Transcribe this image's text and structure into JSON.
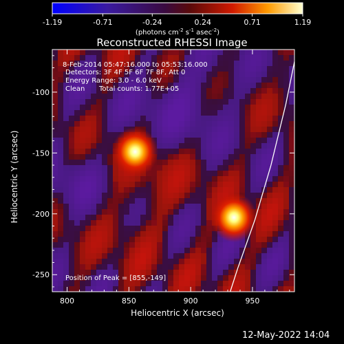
{
  "chart_data": {
    "type": "heatmap",
    "title": "Reconstructed RHESSI Image",
    "colorbar": {
      "ticks": [
        "-1.19",
        "-0.71",
        "-0.24",
        "0.24",
        "0.71",
        "1.19"
      ],
      "range": [
        -1.19,
        1.19
      ],
      "unit_label": "(photons cm",
      "unit_sup1": "-2",
      "unit_mid1": " s",
      "unit_sup2": "-1",
      "unit_mid2": " asec",
      "unit_sup3": "-2",
      "unit_end": ")"
    },
    "xlabel": "Heliocentric X (arcsec)",
    "ylabel": "Heliocentric Y (arcsec)",
    "xlim": [
      788,
      984
    ],
    "ylim": [
      -264,
      -65
    ],
    "xticks": [
      800,
      850,
      900,
      950
    ],
    "yticks": [
      -100,
      -150,
      -200,
      -250
    ],
    "annotations": {
      "time_range": "8-Feb-2014 05:47:16.000 to 05:53:16.000",
      "detectors": "Detectors: 3F 4F 5F 6F 7F 8F, Att 0",
      "energy": "Energy Range: 3.0 - 6.0 keV",
      "clean": "Clean",
      "total_counts": "Total counts: 1.77E+05",
      "peak": "Position of Peak = [855,-149]"
    },
    "sources": [
      {
        "x": 855,
        "y": -149,
        "peak": 1.19
      },
      {
        "x": 935,
        "y": -203,
        "peak": 1.12
      }
    ],
    "limb_curve": [
      [
        986,
        -65
      ],
      [
        977,
        -110
      ],
      [
        965,
        -160
      ],
      [
        952,
        -205
      ],
      [
        938,
        -245
      ],
      [
        932,
        -264
      ]
    ]
  },
  "footer": {
    "timestamp": "12-May-2022 14:04"
  }
}
